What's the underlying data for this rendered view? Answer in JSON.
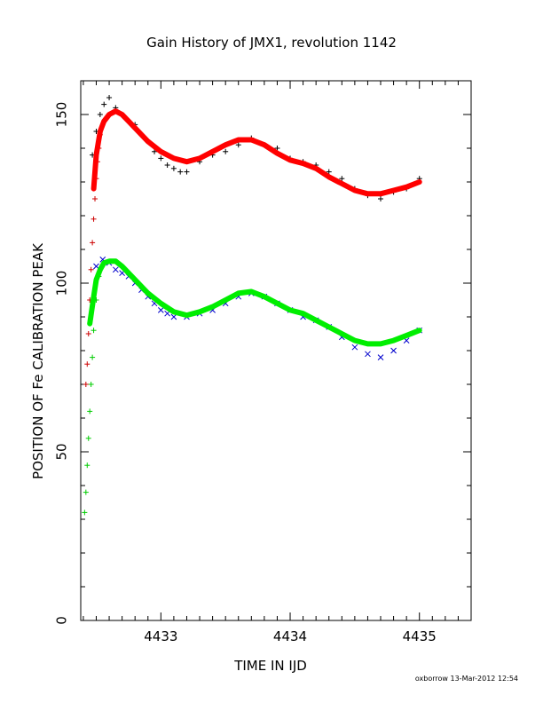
{
  "chart_data": {
    "type": "scatter",
    "title": "Gain History of JMX1, revolution 1142",
    "xlabel": "TIME IN IJD",
    "ylabel": "POSITION OF Fe CALIBRATION PEAK",
    "xlim": [
      4432.38,
      4435.4
    ],
    "ylim": [
      0,
      160
    ],
    "xticks": [
      4433,
      4434,
      4435
    ],
    "xtick_labels": [
      "4433",
      "4434",
      "4435"
    ],
    "yticks": [
      0,
      50,
      100,
      150
    ],
    "ytick_labels": [
      "0",
      "50",
      "100",
      "150"
    ],
    "grid": false,
    "legend": "none",
    "footer": "oxborrow 13-Mar-2012 12:54",
    "series": [
      {
        "marker": "plus",
        "color": "#000000",
        "x": [
          4432.47,
          4432.5,
          4432.53,
          4432.56,
          4432.6,
          4432.65,
          4432.7,
          4432.75,
          4432.8,
          4432.85,
          4432.9,
          4432.95,
          4433.0,
          4433.05,
          4433.1,
          4433.15,
          4433.2,
          4433.3,
          4433.4,
          4433.5,
          4433.6,
          4433.7,
          4433.8,
          4433.9,
          4434.0,
          4434.1,
          4434.2,
          4434.3,
          4434.4,
          4434.5,
          4434.6,
          4434.7,
          4434.8,
          4434.9,
          4435.0
        ],
        "y": [
          138,
          145,
          150,
          153,
          155,
          152,
          150,
          148,
          147,
          144,
          142,
          139,
          137,
          135,
          134,
          133,
          133,
          136,
          138,
          139,
          141,
          143,
          141,
          140,
          137,
          136,
          135,
          133,
          131,
          128,
          126,
          125,
          127,
          128,
          131
        ]
      },
      {
        "marker": "plus",
        "color": "#cc0000",
        "x": [
          4432.42,
          4432.43,
          4432.44,
          4432.45,
          4432.46,
          4432.47,
          4432.48,
          4432.49,
          4432.5,
          4432.51,
          4432.52,
          4432.53
        ],
        "y": [
          70,
          76,
          85,
          95,
          104,
          112,
          119,
          125,
          131,
          136,
          140,
          144
        ]
      },
      {
        "marker": "x",
        "color": "#0000cc",
        "x": [
          4432.5,
          4432.55,
          4432.6,
          4432.65,
          4432.7,
          4432.75,
          4432.8,
          4432.85,
          4432.9,
          4432.95,
          4433.0,
          4433.05,
          4433.1,
          4433.2,
          4433.3,
          4433.4,
          4433.5,
          4433.6,
          4433.7,
          4433.8,
          4433.9,
          4434.0,
          4434.1,
          4434.2,
          4434.3,
          4434.4,
          4434.5,
          4434.6,
          4434.7,
          4434.8,
          4434.9,
          4435.0
        ],
        "y": [
          105,
          107,
          106,
          104,
          103,
          102,
          100,
          98,
          96,
          94,
          92,
          91,
          90,
          90,
          91,
          92,
          94,
          96,
          97,
          96,
          94,
          92,
          90,
          89,
          87,
          84,
          81,
          79,
          78,
          80,
          83,
          86
        ]
      },
      {
        "marker": "plus",
        "color": "#00cc00",
        "x": [
          4432.41,
          4432.42,
          4432.43,
          4432.44,
          4432.45,
          4432.46,
          4432.47,
          4432.48,
          4432.5,
          4432.52
        ],
        "y": [
          32,
          38,
          46,
          54,
          62,
          70,
          78,
          86,
          95,
          102
        ]
      },
      {
        "type": "line",
        "color": "#ff0000",
        "x": [
          4432.48,
          4432.5,
          4432.53,
          4432.56,
          4432.6,
          4432.65,
          4432.7,
          4432.75,
          4432.8,
          4432.85,
          4432.9,
          4433.0,
          4433.1,
          4433.2,
          4433.3,
          4433.4,
          4433.5,
          4433.6,
          4433.7,
          4433.8,
          4433.9,
          4434.0,
          4434.1,
          4434.2,
          4434.3,
          4434.4,
          4434.5,
          4434.6,
          4434.7,
          4434.8,
          4434.9,
          4435.0
        ],
        "y": [
          128,
          138,
          145,
          148,
          150,
          151,
          150,
          148,
          146,
          144,
          142,
          139,
          137,
          136,
          137,
          139,
          141,
          142.5,
          142.5,
          141,
          138.5,
          136.5,
          135.5,
          134,
          131.5,
          129.5,
          127.5,
          126.5,
          126.5,
          127.5,
          128.5,
          130
        ]
      },
      {
        "type": "line",
        "color": "#00ee00",
        "x": [
          4432.45,
          4432.48,
          4432.5,
          4432.53,
          4432.56,
          4432.6,
          4432.65,
          4432.7,
          4432.75,
          4432.8,
          4432.85,
          4432.9,
          4433.0,
          4433.1,
          4433.2,
          4433.3,
          4433.4,
          4433.5,
          4433.6,
          4433.7,
          4433.8,
          4433.9,
          4434.0,
          4434.1,
          4434.2,
          4434.3,
          4434.4,
          4434.5,
          4434.6,
          4434.7,
          4434.8,
          4434.9,
          4435.0
        ],
        "y": [
          88,
          96,
          101,
          104,
          106,
          106.5,
          106.5,
          105,
          103,
          101,
          99,
          97,
          94,
          91.5,
          90.5,
          91.5,
          93,
          95,
          97,
          97.5,
          96,
          94,
          92,
          91,
          89,
          87,
          85,
          83,
          82,
          82,
          83,
          84.5,
          86
        ]
      }
    ]
  }
}
